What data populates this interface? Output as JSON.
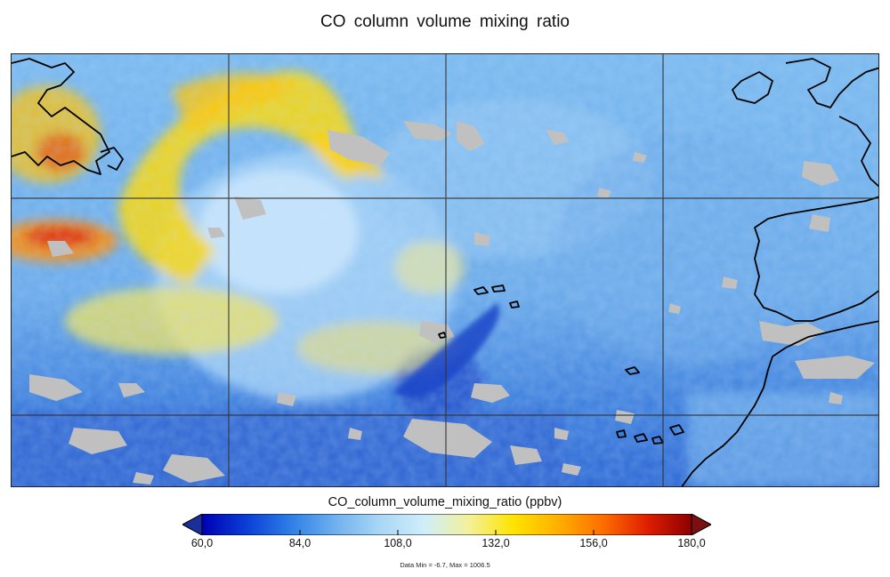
{
  "title": "CO  column  volume  mixing  ratio",
  "colorbar": {
    "label": "CO_column_volume_mixing_ratio (ppbv)",
    "min": 60.0,
    "max": 180.0,
    "ticks": [
      {
        "value": 60.0,
        "label": "60,0"
      },
      {
        "value": 84.0,
        "label": "84,0"
      },
      {
        "value": 108.0,
        "label": "108,0"
      },
      {
        "value": 132.0,
        "label": "132,0"
      },
      {
        "value": 156.0,
        "label": "156,0"
      },
      {
        "value": 180.0,
        "label": "180,0"
      }
    ],
    "colors": [
      "#0000b4",
      "#0a3fd6",
      "#2f7fe6",
      "#6fb1ef",
      "#a9d7f6",
      "#cfeefa",
      "#f3f19a",
      "#ffe300",
      "#ffb000",
      "#ff6e00",
      "#e01e00",
      "#8b0000"
    ],
    "under_color": "#1a2f9a",
    "over_color": "#7a1010"
  },
  "data_range_text": "Data Min = -6.7, Max = 1006.5",
  "legend": {
    "no_data_color": "#c0c0c0",
    "coastline_color": "#000000",
    "grid_color": "#333333"
  }
}
